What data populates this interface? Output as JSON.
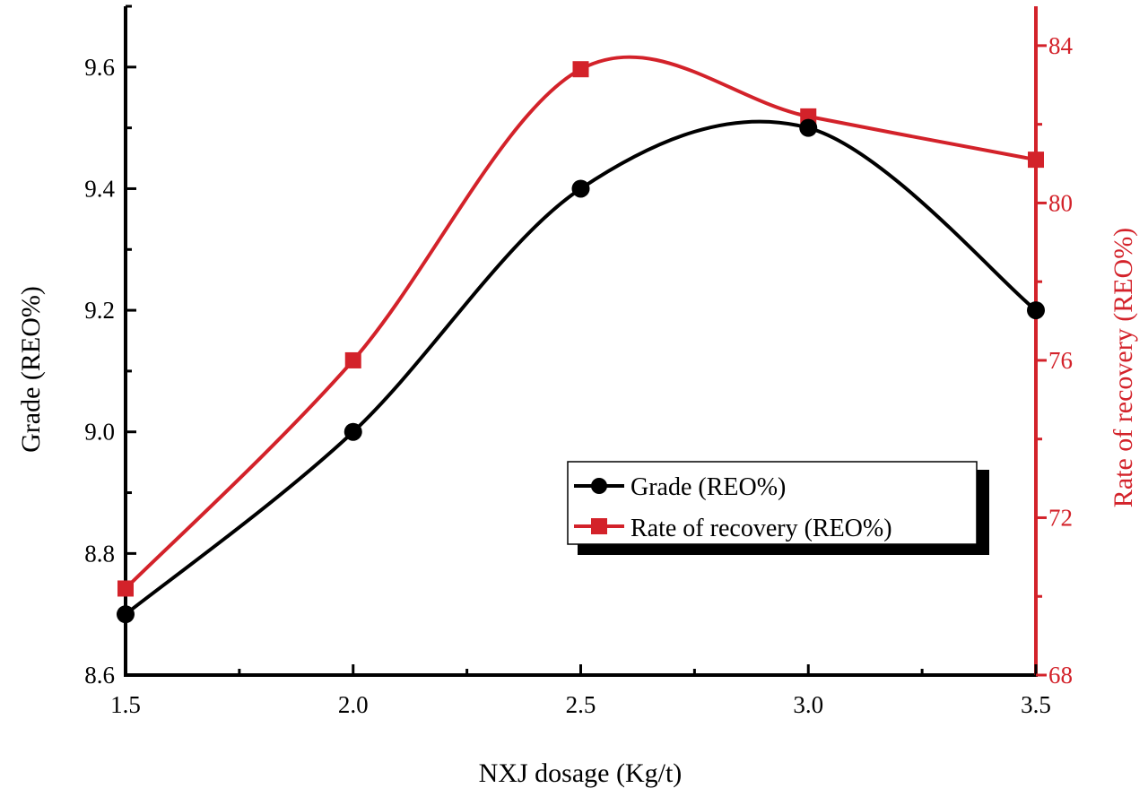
{
  "chart_data": {
    "type": "line",
    "x": [
      1.5,
      2.0,
      2.5,
      3.0,
      3.5
    ],
    "xlabel": "NXJ dosage (Kg/t)",
    "xlim": [
      1.5,
      3.5
    ],
    "xticks": [
      "1.5",
      "2.0",
      "2.5",
      "3.0",
      "3.5"
    ],
    "ylabel": "Grade (REO%)",
    "ylim": [
      8.6,
      9.7
    ],
    "yticks": [
      "8.6",
      "8.8",
      "9.0",
      "9.2",
      "9.4",
      "9.6"
    ],
    "y2label": "Rate of recovery (REO%)",
    "y2lim": [
      68,
      85
    ],
    "y2ticks": [
      "68",
      "72",
      "76",
      "80",
      "84"
    ],
    "series": [
      {
        "name": "Grade (REO%)",
        "axis": "left",
        "marker": "circle",
        "color": "#000000",
        "values": [
          8.7,
          9.0,
          9.4,
          9.5,
          9.2
        ]
      },
      {
        "name": "Rate of recovery (REO%)",
        "axis": "right",
        "marker": "square",
        "color": "#d3222a",
        "values": [
          70.2,
          76.0,
          83.4,
          82.2,
          81.1
        ]
      }
    ],
    "legend_position": "center-right",
    "grid": false
  }
}
